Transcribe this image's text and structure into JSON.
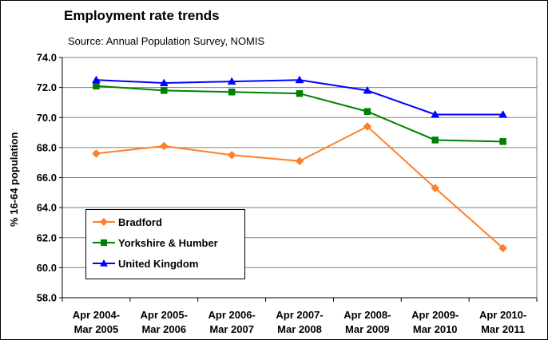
{
  "chart_data": {
    "type": "line",
    "title": "Employment rate trends",
    "subtitle": "Source: Annual Population Survey, NOMIS",
    "ylabel": "% 16-64 population",
    "xlabel": "",
    "ylim": [
      58.0,
      74.0
    ],
    "yticks": [
      "58.0",
      "60.0",
      "62.0",
      "64.0",
      "66.0",
      "68.0",
      "70.0",
      "72.0",
      "74.0"
    ],
    "categories": [
      [
        "Apr 2004-",
        "Mar 2005"
      ],
      [
        "Apr 2005-",
        "Mar 2006"
      ],
      [
        "Apr 2006-",
        "Mar 2007"
      ],
      [
        "Apr 2007-",
        "Mar 2008"
      ],
      [
        "Apr 2008-",
        "Mar 2009"
      ],
      [
        "Apr 2009-",
        "Mar 2010"
      ],
      [
        "Apr 2010-",
        "Mar 2011"
      ]
    ],
    "grid": true,
    "legend_position": "bottom-left",
    "series": [
      {
        "name": "Bradford",
        "color": "#ff7f27",
        "marker": "diamond",
        "values": [
          67.6,
          68.1,
          67.5,
          67.1,
          69.4,
          65.3,
          61.3
        ]
      },
      {
        "name": "Yorkshire & Humber",
        "color": "#008000",
        "marker": "square",
        "values": [
          72.1,
          71.8,
          71.7,
          71.6,
          70.4,
          68.5,
          68.4
        ]
      },
      {
        "name": "United Kingdom",
        "color": "#0000ff",
        "marker": "triangle",
        "values": [
          72.5,
          72.3,
          72.4,
          72.5,
          71.8,
          70.2,
          70.2
        ]
      }
    ]
  }
}
